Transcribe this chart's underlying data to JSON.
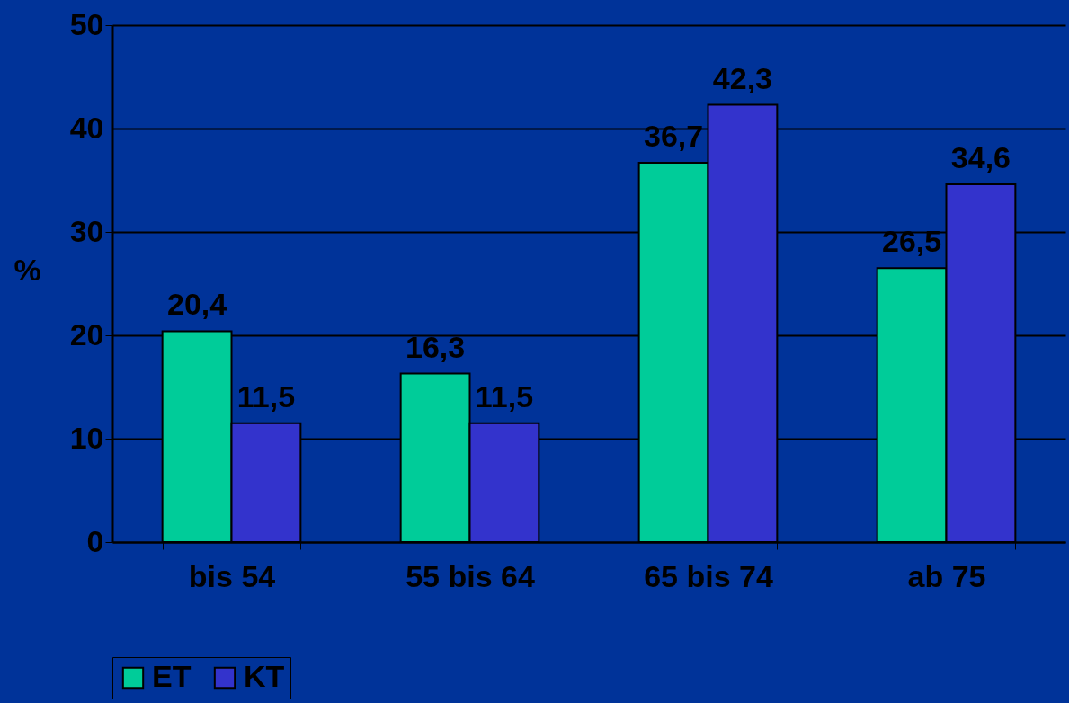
{
  "chart_data": {
    "type": "bar",
    "ylabel": "%",
    "categories": [
      "bis 54",
      "55 bis 64",
      "65 bis 74",
      "ab 75"
    ],
    "series": [
      {
        "name": "ET",
        "color": "#00cc99",
        "values": [
          20.4,
          16.3,
          36.7,
          26.5
        ],
        "value_labels": [
          "20,4",
          "16,3",
          "36,7",
          "26,5"
        ]
      },
      {
        "name": "KT",
        "color": "#3333cc",
        "values": [
          11.5,
          11.5,
          42.3,
          34.6
        ],
        "value_labels": [
          "11,5",
          "11,5",
          "42,3",
          "34,6"
        ]
      }
    ],
    "ylim": [
      0,
      50
    ],
    "yticks": [
      0,
      10,
      20,
      30,
      40,
      50
    ],
    "grid": "y",
    "legend": "bottom"
  }
}
